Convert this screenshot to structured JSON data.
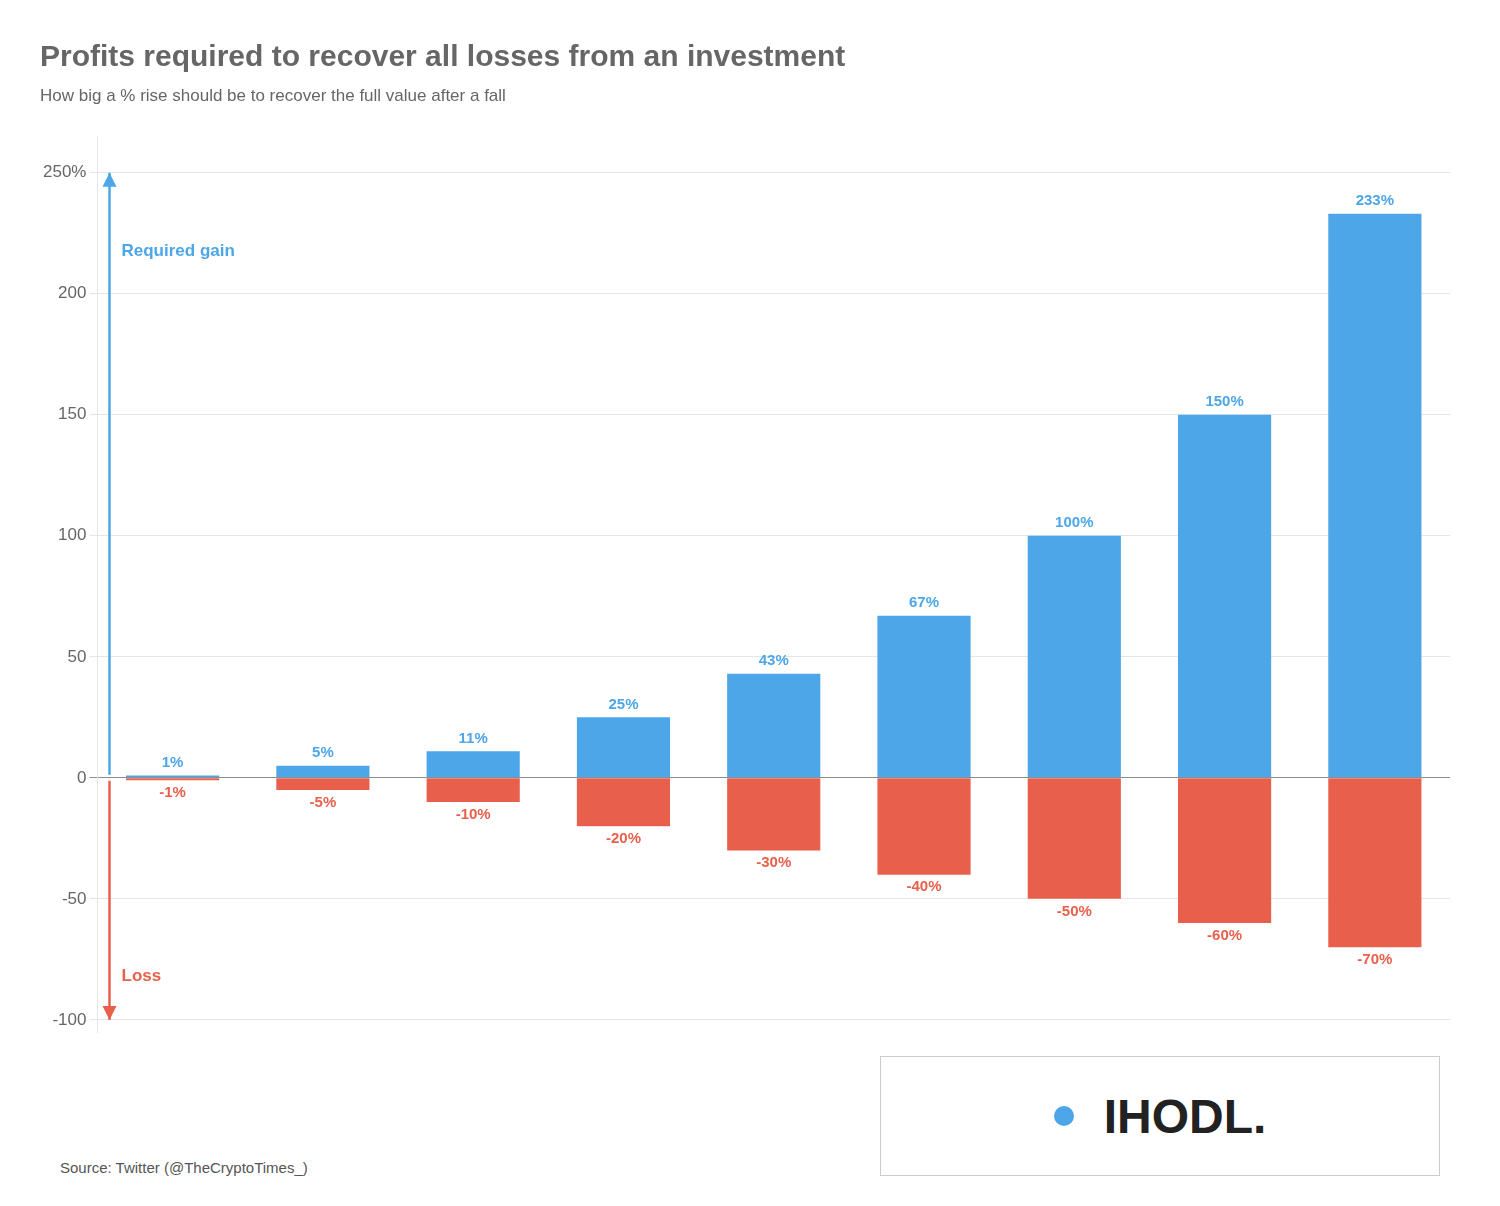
{
  "chart_data": {
    "type": "bar",
    "title": "Profits required to recover all losses from an investment",
    "subtitle": "How big a % rise should be to recover the full value after a fall",
    "source": "Source: Twitter (@TheCryptoTimes_)",
    "annotations": [
      "IHODL."
    ],
    "categories": [
      null,
      null,
      null,
      null,
      null,
      null,
      null,
      null,
      null
    ],
    "series": [
      {
        "name": "Required gain",
        "color": "#4da6e8",
        "values": [
          1,
          5,
          11,
          25,
          43,
          67,
          100,
          150,
          233
        ],
        "value_labels": [
          "1%",
          "5%",
          "11%",
          "25%",
          "43%",
          "67%",
          "100%",
          "150%",
          "233%"
        ]
      },
      {
        "name": "Loss",
        "color": "#e8604c",
        "values": [
          -1,
          -5,
          -10,
          -20,
          -30,
          -40,
          -50,
          -60,
          -70
        ],
        "value_labels": [
          "-1%",
          "-5%",
          "-10%",
          "-20%",
          "-30%",
          "-40%",
          "-50%",
          "-60%",
          "-70%"
        ]
      }
    ],
    "ylim": [
      -105,
      265
    ],
    "yticks": [
      {
        "value": 250,
        "label": "250%"
      },
      200,
      150,
      100,
      50,
      0,
      -50,
      -100
    ],
    "grid": true,
    "data_labels": true,
    "tick_labels": "y"
  }
}
